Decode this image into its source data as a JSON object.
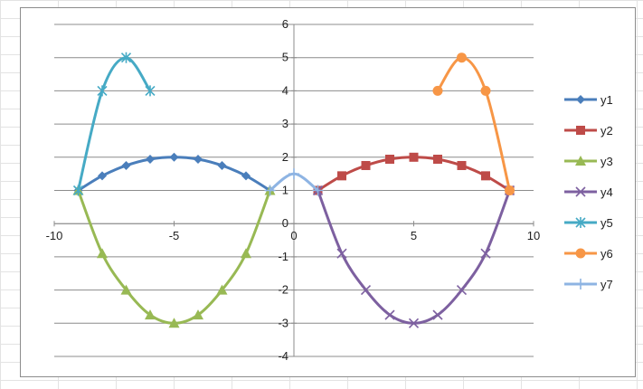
{
  "chart_data": {
    "type": "scatter",
    "xlim": [
      -10,
      10
    ],
    "ylim": [
      -4,
      6
    ],
    "x_ticks": [
      -10,
      -5,
      0,
      5,
      10
    ],
    "y_ticks": [
      -4,
      -3,
      -2,
      -1,
      0,
      1,
      2,
      3,
      4,
      5,
      6
    ],
    "grid": "horizontal major gridlines",
    "legend_position": "right",
    "smoothed_lines": true,
    "series": [
      {
        "name": "y1",
        "color": "#4a7ebb",
        "marker": "diamond",
        "points": [
          [
            -9,
            1
          ],
          [
            -8,
            1.44
          ],
          [
            -7,
            1.75
          ],
          [
            -6,
            1.94
          ],
          [
            -5,
            2
          ],
          [
            -4,
            1.94
          ],
          [
            -3,
            1.75
          ],
          [
            -2,
            1.44
          ],
          [
            -1,
            1
          ]
        ]
      },
      {
        "name": "y2",
        "color": "#be4b48",
        "marker": "square",
        "points": [
          [
            1,
            1
          ],
          [
            2,
            1.44
          ],
          [
            3,
            1.75
          ],
          [
            4,
            1.94
          ],
          [
            5,
            2
          ],
          [
            6,
            1.94
          ],
          [
            7,
            1.75
          ],
          [
            8,
            1.44
          ],
          [
            9,
            1
          ]
        ]
      },
      {
        "name": "y3",
        "color": "#98b954",
        "marker": "triangle",
        "points": [
          [
            -9,
            1
          ],
          [
            -8,
            -0.9
          ],
          [
            -7,
            -2
          ],
          [
            -6,
            -2.75
          ],
          [
            -5,
            -3
          ],
          [
            -4,
            -2.75
          ],
          [
            -3,
            -2
          ],
          [
            -2,
            -0.9
          ],
          [
            -1,
            1
          ]
        ]
      },
      {
        "name": "y4",
        "color": "#7d60a0",
        "marker": "x",
        "points": [
          [
            1,
            1
          ],
          [
            2,
            -0.9
          ],
          [
            3,
            -2
          ],
          [
            4,
            -2.75
          ],
          [
            5,
            -3
          ],
          [
            6,
            -2.75
          ],
          [
            7,
            -2
          ],
          [
            8,
            -0.9
          ],
          [
            9,
            1
          ]
        ]
      },
      {
        "name": "y5",
        "color": "#46aac5",
        "marker": "star",
        "points": [
          [
            -9,
            1
          ],
          [
            -8,
            4
          ],
          [
            -7,
            5
          ],
          [
            -6,
            4
          ]
        ]
      },
      {
        "name": "y6",
        "color": "#f79646",
        "marker": "circle",
        "points": [
          [
            6,
            4
          ],
          [
            7,
            5
          ],
          [
            8,
            4
          ],
          [
            9,
            1
          ]
        ]
      },
      {
        "name": "y7",
        "color": "#8eb4e3",
        "marker": "plus",
        "points": [
          [
            -1,
            1
          ],
          [
            0,
            1.5
          ],
          [
            1,
            1
          ]
        ]
      }
    ]
  }
}
